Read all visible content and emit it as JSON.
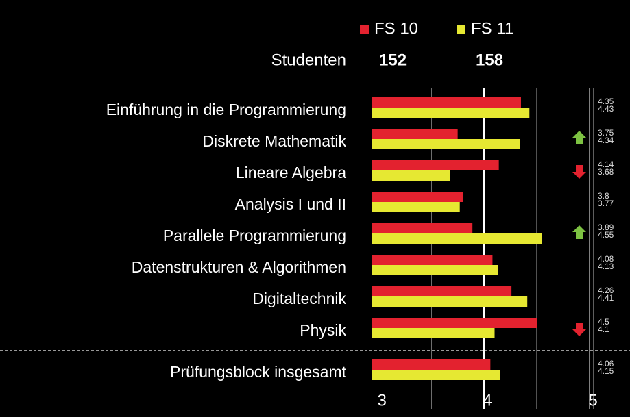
{
  "chart_data": {
    "type": "bar",
    "orientation": "horizontal",
    "count_label": "Studenten",
    "categories": [
      "Einführung in die Programmierung",
      "Diskrete Mathematik",
      "Lineare Algebra",
      "Analysis I und II",
      "Parallele Programmierung",
      "Datenstrukturen & Algorithmen",
      "Digitaltechnik",
      "Physik",
      "Prüfungsblock insgesamt"
    ],
    "series": [
      {
        "name": "FS 10",
        "color": "#e3222f",
        "count": 152,
        "values": [
          4.35,
          3.75,
          4.14,
          3.8,
          3.89,
          4.08,
          4.26,
          4.5,
          4.06
        ]
      },
      {
        "name": "FS 11",
        "color": "#e6e832",
        "count": 158,
        "values": [
          4.43,
          4.34,
          3.68,
          3.77,
          4.55,
          4.13,
          4.41,
          4.1,
          4.15
        ]
      }
    ],
    "trend": [
      null,
      "up",
      "down",
      null,
      "up",
      null,
      null,
      "down",
      null
    ],
    "xlim": [
      2.94,
      5
    ],
    "xticks": [
      3,
      4,
      5
    ],
    "minor_xticks": [
      3.5,
      4.5
    ],
    "grid": true
  }
}
